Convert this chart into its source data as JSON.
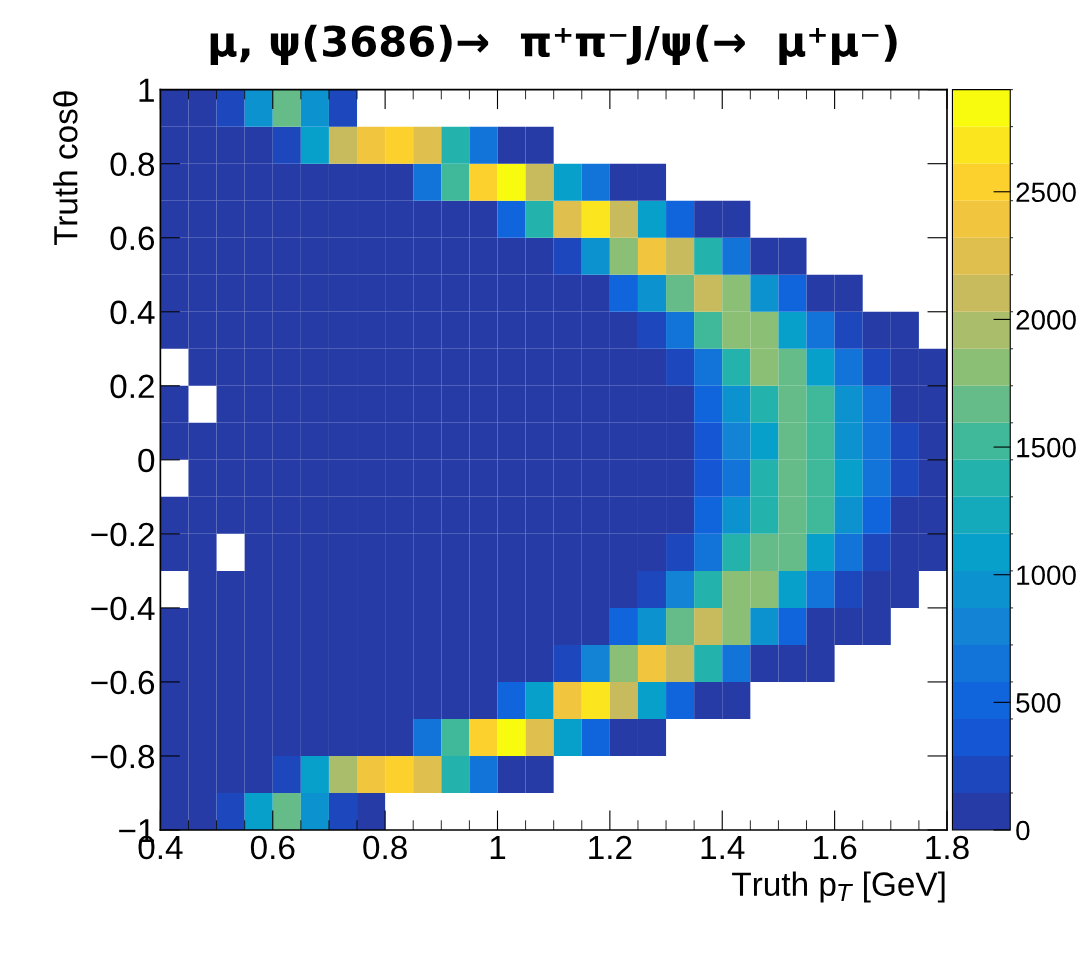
{
  "chart_data": {
    "type": "heatmap",
    "title": "μ, ψ(3686)→  π⁺π⁻J/ψ(→  μ⁺μ⁻)",
    "xlabel": "Truth p$_{T}$ [GeV]",
    "ylabel": "Truth cosθ",
    "xlim": [
      0.4,
      1.8
    ],
    "ylim": [
      -1,
      1
    ],
    "xticks": [
      0.4,
      0.6,
      0.8,
      {
        "value": 1,
        "label": "1"
      },
      1.2,
      1.4,
      1.6,
      1.8
    ],
    "yticks": [
      {
        "value": -1,
        "label": "−1"
      },
      {
        "value": -0.8,
        "label": "−0.8"
      },
      {
        "value": -0.6,
        "label": "−0.6"
      },
      {
        "value": -0.4,
        "label": "−0.4"
      },
      {
        "value": -0.2,
        "label": "−0.2"
      },
      0,
      0.2,
      0.4,
      0.6,
      0.8,
      1
    ],
    "clim": [
      0,
      2900
    ],
    "cticks": [
      0,
      500,
      1000,
      1500,
      2000,
      2500
    ],
    "grid": false,
    "cells": [
      [
        50,
        50,
        250,
        1000,
        1650,
        900,
        250,
        null,
        null,
        null,
        null,
        null,
        null,
        null,
        null,
        null,
        null,
        null,
        null,
        null,
        null,
        null,
        null,
        null,
        null,
        null,
        null,
        null
      ],
      [
        50,
        50,
        50,
        50,
        250,
        1150,
        2150,
        2450,
        2600,
        2300,
        1350,
        600,
        50,
        50,
        null,
        null,
        null,
        null,
        null,
        null,
        null,
        null,
        null,
        null,
        null,
        null,
        null,
        null
      ],
      [
        50,
        50,
        50,
        50,
        50,
        50,
        50,
        50,
        50,
        600,
        1500,
        2600,
        2880,
        2150,
        1150,
        600,
        50,
        50,
        null,
        null,
        null,
        null,
        null,
        null,
        null,
        null,
        null,
        null
      ],
      [
        50,
        50,
        50,
        50,
        50,
        50,
        50,
        50,
        50,
        50,
        50,
        50,
        450,
        1350,
        2300,
        2750,
        2150,
        1150,
        450,
        50,
        50,
        null,
        null,
        null,
        null,
        null,
        null,
        null
      ],
      [
        50,
        50,
        50,
        50,
        50,
        50,
        50,
        50,
        50,
        50,
        50,
        50,
        50,
        50,
        250,
        900,
        1850,
        2450,
        2150,
        1350,
        650,
        50,
        50,
        null,
        null,
        null,
        null,
        null
      ],
      [
        50,
        50,
        50,
        50,
        50,
        50,
        50,
        50,
        50,
        50,
        50,
        50,
        50,
        50,
        50,
        50,
        450,
        900,
        1700,
        2150,
        1850,
        900,
        500,
        50,
        50,
        null,
        null,
        null
      ],
      [
        50,
        50,
        50,
        50,
        50,
        50,
        50,
        50,
        50,
        50,
        50,
        50,
        50,
        50,
        50,
        50,
        50,
        250,
        700,
        1550,
        1850,
        1850,
        1150,
        650,
        250,
        50,
        50,
        null
      ],
      [
        null,
        50,
        50,
        50,
        50,
        50,
        50,
        50,
        50,
        50,
        50,
        50,
        50,
        50,
        50,
        50,
        50,
        50,
        250,
        700,
        1350,
        1850,
        1700,
        1150,
        650,
        250,
        50,
        50
      ],
      [
        50,
        null,
        50,
        50,
        50,
        50,
        50,
        50,
        50,
        50,
        50,
        50,
        50,
        50,
        50,
        50,
        50,
        50,
        50,
        450,
        900,
        1350,
        1700,
        1550,
        900,
        600,
        50,
        50
      ],
      [
        50,
        50,
        50,
        50,
        50,
        50,
        50,
        50,
        50,
        50,
        50,
        50,
        50,
        50,
        50,
        50,
        50,
        50,
        50,
        300,
        800,
        1150,
        1700,
        1550,
        1000,
        650,
        250,
        50
      ],
      [
        null,
        50,
        50,
        50,
        50,
        50,
        50,
        50,
        50,
        50,
        50,
        50,
        50,
        50,
        50,
        50,
        50,
        50,
        50,
        300,
        700,
        1350,
        1700,
        1550,
        1050,
        650,
        250,
        50
      ],
      [
        50,
        50,
        50,
        50,
        50,
        50,
        50,
        50,
        50,
        50,
        50,
        50,
        50,
        50,
        50,
        50,
        50,
        50,
        50,
        450,
        900,
        1350,
        1700,
        1550,
        900,
        500,
        50,
        50
      ],
      [
        50,
        50,
        null,
        50,
        50,
        50,
        50,
        50,
        50,
        50,
        50,
        50,
        50,
        50,
        50,
        50,
        50,
        50,
        250,
        700,
        1350,
        1700,
        1700,
        1150,
        650,
        250,
        50,
        50
      ],
      [
        null,
        50,
        50,
        50,
        50,
        50,
        50,
        50,
        50,
        50,
        50,
        50,
        50,
        50,
        50,
        50,
        50,
        250,
        800,
        1350,
        1850,
        1850,
        1150,
        650,
        250,
        50,
        50,
        null
      ],
      [
        50,
        50,
        50,
        50,
        50,
        50,
        50,
        50,
        50,
        50,
        50,
        50,
        50,
        50,
        50,
        50,
        450,
        950,
        1700,
        2150,
        1850,
        950,
        500,
        50,
        50,
        50,
        null,
        null
      ],
      [
        50,
        50,
        50,
        50,
        50,
        50,
        50,
        50,
        50,
        50,
        50,
        50,
        50,
        50,
        250,
        850,
        1850,
        2450,
        2150,
        1350,
        650,
        50,
        50,
        50,
        null,
        null,
        null,
        null
      ],
      [
        50,
        50,
        50,
        50,
        50,
        50,
        50,
        50,
        50,
        50,
        50,
        50,
        450,
        1150,
        2450,
        2750,
        2150,
        1150,
        450,
        50,
        50,
        null,
        null,
        null,
        null,
        null,
        null,
        null
      ],
      [
        50,
        50,
        50,
        50,
        50,
        50,
        50,
        50,
        50,
        600,
        1550,
        2600,
        2880,
        2300,
        1150,
        450,
        50,
        50,
        null,
        null,
        null,
        null,
        null,
        null,
        null,
        null,
        null,
        null
      ],
      [
        50,
        50,
        50,
        50,
        250,
        1050,
        2000,
        2450,
        2600,
        2300,
        1350,
        600,
        50,
        50,
        null,
        null,
        null,
        null,
        null,
        null,
        null,
        null,
        null,
        null,
        null,
        null,
        null,
        null
      ],
      [
        50,
        50,
        250,
        1100,
        1700,
        900,
        250,
        50,
        null,
        null,
        null,
        null,
        null,
        null,
        null,
        null,
        null,
        null,
        null,
        null,
        null,
        null,
        null,
        null,
        null,
        null,
        null,
        null
      ]
    ]
  }
}
